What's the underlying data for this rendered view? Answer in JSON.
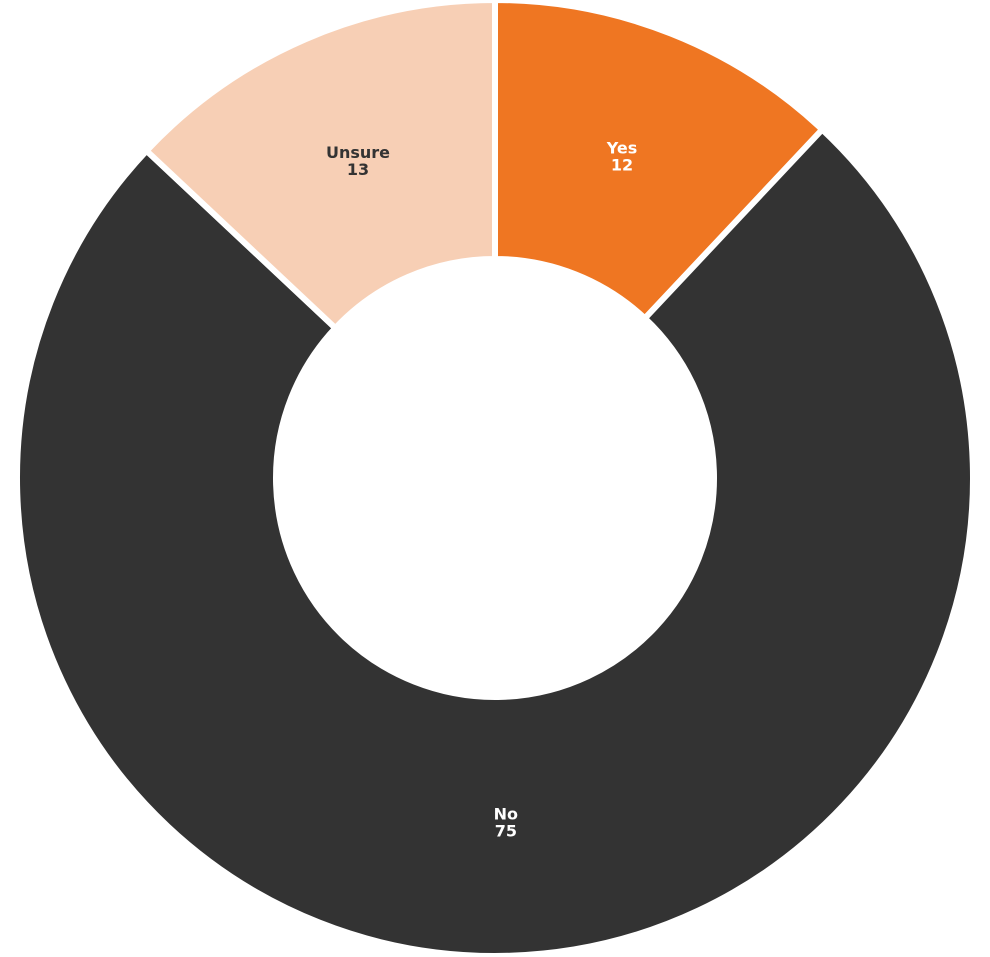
{
  "chart_data": {
    "type": "donut",
    "categories": [
      "Yes",
      "No",
      "Unsure"
    ],
    "values": [
      12,
      75,
      13
    ],
    "colors": [
      "#ef7622",
      "#333333",
      "#f7cfb5"
    ],
    "label_colors": [
      "#ffffff",
      "#ffffff",
      "#333333"
    ]
  }
}
